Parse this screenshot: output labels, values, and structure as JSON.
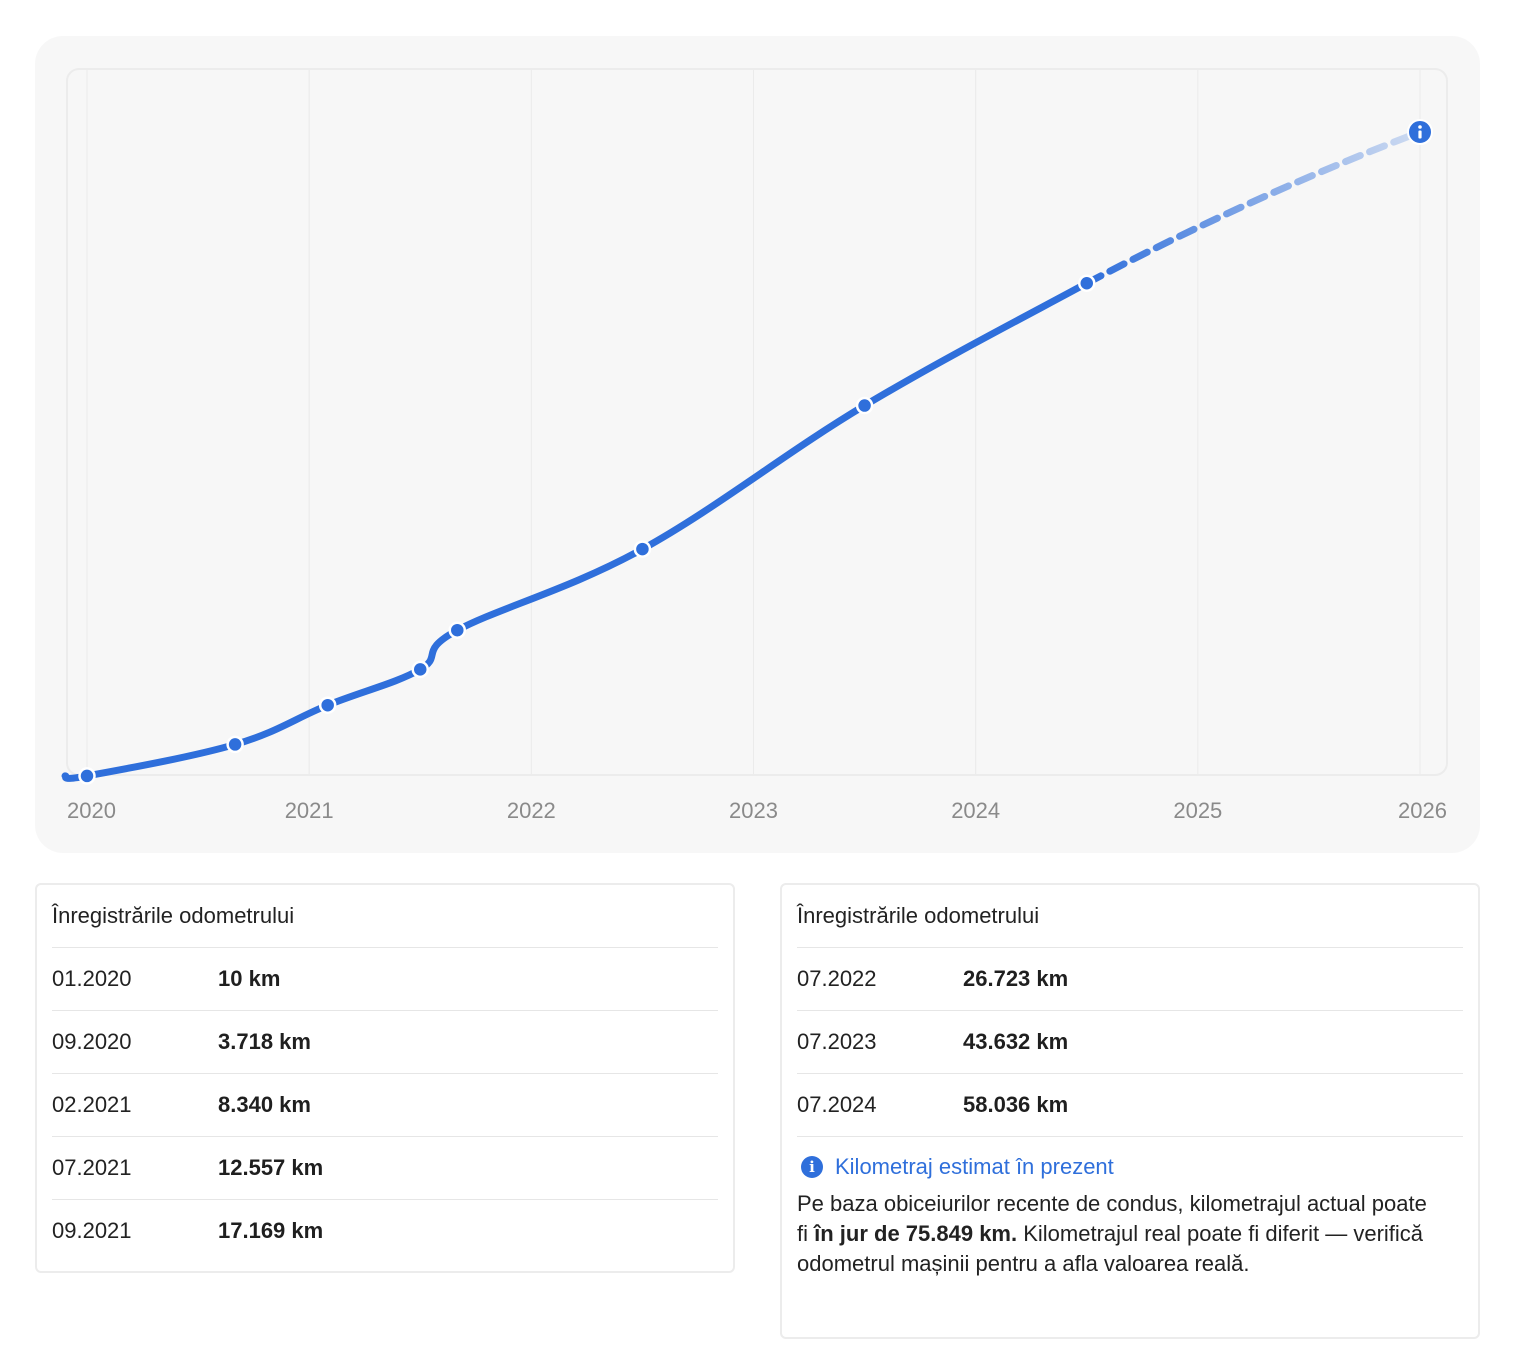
{
  "chart_data": {
    "type": "line",
    "x_tick_labels": [
      "2020",
      "2021",
      "2022",
      "2023",
      "2024",
      "2025",
      "2026"
    ],
    "xlim": [
      "2020-01",
      "2026-01"
    ],
    "ylim": [
      0,
      75849
    ],
    "grid": true,
    "colors": {
      "line": "#2f6fdb",
      "projection": "#2f6fdb",
      "background": "#f7f7f7"
    },
    "series": [
      {
        "points": [
          {
            "x": "2020-01",
            "y": 10
          },
          {
            "x": "2020-09",
            "y": 3718
          },
          {
            "x": "2021-02",
            "y": 8340
          },
          {
            "x": "2021-07",
            "y": 12557
          },
          {
            "x": "2021-09",
            "y": 17169
          },
          {
            "x": "2022-07",
            "y": 26723
          },
          {
            "x": "2023-07",
            "y": 43632
          },
          {
            "x": "2024-07",
            "y": 58036
          }
        ]
      }
    ],
    "projection": {
      "from": {
        "x": "2024-07",
        "y": 58036
      },
      "to": {
        "x": "2026-01",
        "y": 75849
      },
      "style": "dashed-fading",
      "end_icon": "info-icon"
    }
  },
  "tables": [
    {
      "title": "Înregistrările odometrului",
      "rows": [
        {
          "date": "01.2020",
          "km": "10 km"
        },
        {
          "date": "09.2020",
          "km": "3.718 km"
        },
        {
          "date": "02.2021",
          "km": "8.340 km"
        },
        {
          "date": "07.2021",
          "km": "12.557 km"
        },
        {
          "date": "09.2021",
          "km": "17.169 km"
        }
      ]
    },
    {
      "title": "Înregistrările odometrului",
      "rows": [
        {
          "date": "07.2022",
          "km": "26.723 km"
        },
        {
          "date": "07.2023",
          "km": "43.632 km"
        },
        {
          "date": "07.2024",
          "km": "58.036 km"
        }
      ]
    }
  ],
  "estimate": {
    "icon": "info-icon",
    "title": "Kilometraj estimat în prezent",
    "text_before": "Pe baza obiceiurilor recente de condus, kilometrajul actual poate fi ",
    "text_bold": "în jur de 75.849 km.",
    "text_after": " Kilometrajul real poate fi diferit — verifică odometrul mașinii pentru a afla valoarea reală."
  }
}
